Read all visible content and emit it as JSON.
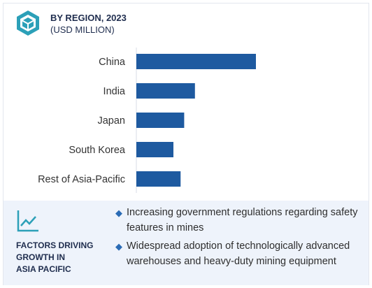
{
  "header": {
    "title": "BY REGION, 2023",
    "subtitle": "(USD MILLION)",
    "icon": "cube-logo-icon"
  },
  "colors": {
    "bar": "#1e5aa0",
    "title": "#1f2d4e",
    "panel_bg": "#eef3fb",
    "icon_teal": "#2ca0b8"
  },
  "chart_data": {
    "type": "bar",
    "orientation": "horizontal",
    "categories": [
      "China",
      "India",
      "Japan",
      "South Korea",
      "Rest of Asia-Pacific"
    ],
    "values": [
      100,
      49,
      40,
      31,
      37
    ],
    "value_scale": "relative (no axis values shown)",
    "title": "BY REGION, 2023",
    "subtitle": "(USD MILLION)",
    "xlim": [
      0,
      100
    ],
    "grid": false,
    "legend": "none"
  },
  "factors": {
    "icon": "trend-chart-icon",
    "title": "FACTORS DRIVING GROWTH IN ASIA PACIFIC",
    "title_lines": [
      "FACTORS DRIVING",
      "GROWTH IN",
      "ASIA PACIFIC"
    ],
    "items": [
      "Increasing government regulations regarding safety features in mines",
      "Widespread adoption of technologically advanced warehouses and heavy-duty mining equipment"
    ]
  }
}
